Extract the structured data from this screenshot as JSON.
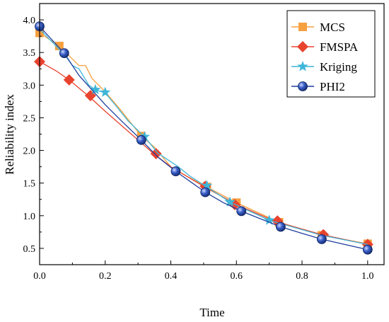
{
  "chart_data": {
    "type": "line",
    "title": "",
    "xlabel": "Time",
    "ylabel": "Reliability index",
    "xlim": [
      0.0,
      1.05
    ],
    "ylim": [
      0.25,
      4.25
    ],
    "xticks": [
      "0.0",
      "0.2",
      "0.4",
      "0.6",
      "0.8",
      "1.0"
    ],
    "xtick_values": [
      0.0,
      0.2,
      0.4,
      0.6,
      0.8,
      1.0
    ],
    "yticks": [
      "0.5",
      "1.0",
      "1.5",
      "2.0",
      "2.5",
      "3.0",
      "3.5",
      "4.0"
    ],
    "ytick_values": [
      0.5,
      1.0,
      1.5,
      2.0,
      2.5,
      3.0,
      3.5,
      4.0
    ],
    "grid": false,
    "legend_position": "top-right",
    "series": [
      {
        "name": "MCS",
        "color": "#F7A040",
        "marker": "square",
        "line_x": [
          0.0,
          0.03,
          0.06,
          0.08,
          0.1,
          0.12,
          0.14,
          0.16,
          0.18,
          0.2,
          0.25,
          0.31,
          0.35,
          0.4,
          0.45,
          0.51,
          0.6,
          0.73,
          0.86,
          1.0
        ],
        "line_y": [
          3.8,
          3.7,
          3.6,
          3.5,
          3.4,
          3.3,
          3.3,
          3.1,
          3.0,
          2.9,
          2.6,
          2.22,
          2.05,
          1.75,
          1.6,
          1.44,
          1.2,
          0.9,
          0.7,
          0.57
        ],
        "x": [
          0.0,
          0.06,
          0.31,
          0.51,
          0.6,
          0.73,
          0.86,
          1.0
        ],
        "y": [
          3.8,
          3.6,
          2.22,
          1.44,
          1.2,
          0.9,
          0.7,
          0.57
        ]
      },
      {
        "name": "FMSPA",
        "color": "#E8432E",
        "marker": "diamond",
        "line_x": [
          0.0,
          0.05,
          0.09,
          0.15,
          0.2,
          0.25,
          0.3,
          0.35,
          0.4,
          0.45,
          0.5,
          0.6,
          0.72,
          0.86,
          1.0
        ],
        "line_y": [
          3.36,
          3.22,
          3.08,
          2.83,
          2.6,
          2.38,
          2.16,
          1.94,
          1.75,
          1.6,
          1.45,
          1.17,
          0.91,
          0.71,
          0.56
        ],
        "x": [
          0.0,
          0.09,
          0.155,
          0.355,
          0.505,
          0.595,
          0.725,
          0.865,
          1.0
        ],
        "y": [
          3.36,
          3.08,
          2.84,
          1.95,
          1.45,
          1.17,
          0.92,
          0.71,
          0.56
        ]
      },
      {
        "name": "Kriging",
        "color": "#3FB6D8",
        "marker": "star",
        "line_x": [
          0.0,
          0.04,
          0.08,
          0.1,
          0.12,
          0.15,
          0.17,
          0.2,
          0.23,
          0.27,
          0.32,
          0.36,
          0.42,
          0.46,
          0.51,
          0.58,
          0.7,
          0.86,
          1.0
        ],
        "line_y": [
          3.86,
          3.65,
          3.44,
          3.3,
          3.25,
          3.0,
          2.93,
          2.88,
          2.7,
          2.45,
          2.21,
          1.96,
          1.76,
          1.6,
          1.44,
          1.21,
          0.93,
          0.7,
          0.56
        ],
        "x": [
          0.17,
          0.2,
          0.32,
          0.51,
          0.58,
          0.7
        ],
        "y": [
          2.93,
          2.89,
          2.21,
          1.46,
          1.21,
          0.93
        ]
      },
      {
        "name": "PHI2",
        "color": "#1F3F9E",
        "marker": "circle",
        "line_x": [
          0.0,
          0.075,
          0.12,
          0.2,
          0.25,
          0.31,
          0.36,
          0.415,
          0.46,
          0.505,
          0.56,
          0.615,
          0.68,
          0.735,
          0.8,
          0.86,
          0.93,
          1.0
        ],
        "line_y": [
          3.9,
          3.49,
          3.15,
          2.7,
          2.45,
          2.16,
          1.9,
          1.68,
          1.52,
          1.36,
          1.2,
          1.07,
          0.94,
          0.83,
          0.73,
          0.64,
          0.56,
          0.48
        ],
        "x": [
          0.0,
          0.075,
          0.31,
          0.415,
          0.505,
          0.615,
          0.735,
          0.86,
          1.0
        ],
        "y": [
          3.9,
          3.49,
          2.16,
          1.68,
          1.36,
          1.07,
          0.83,
          0.64,
          0.48
        ]
      }
    ]
  }
}
